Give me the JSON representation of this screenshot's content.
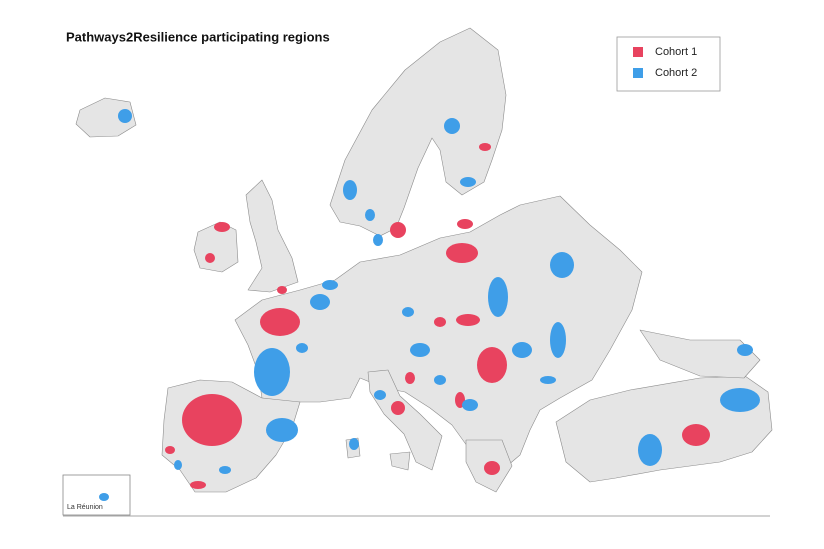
{
  "title": "Pathways2Resilience participating regions",
  "legend": [
    {
      "label": "Cohort 1",
      "color": "#e8435f"
    },
    {
      "label": "Cohort 2",
      "color": "#3f9ee8"
    }
  ],
  "inset": {
    "label": "La Réunion"
  }
}
